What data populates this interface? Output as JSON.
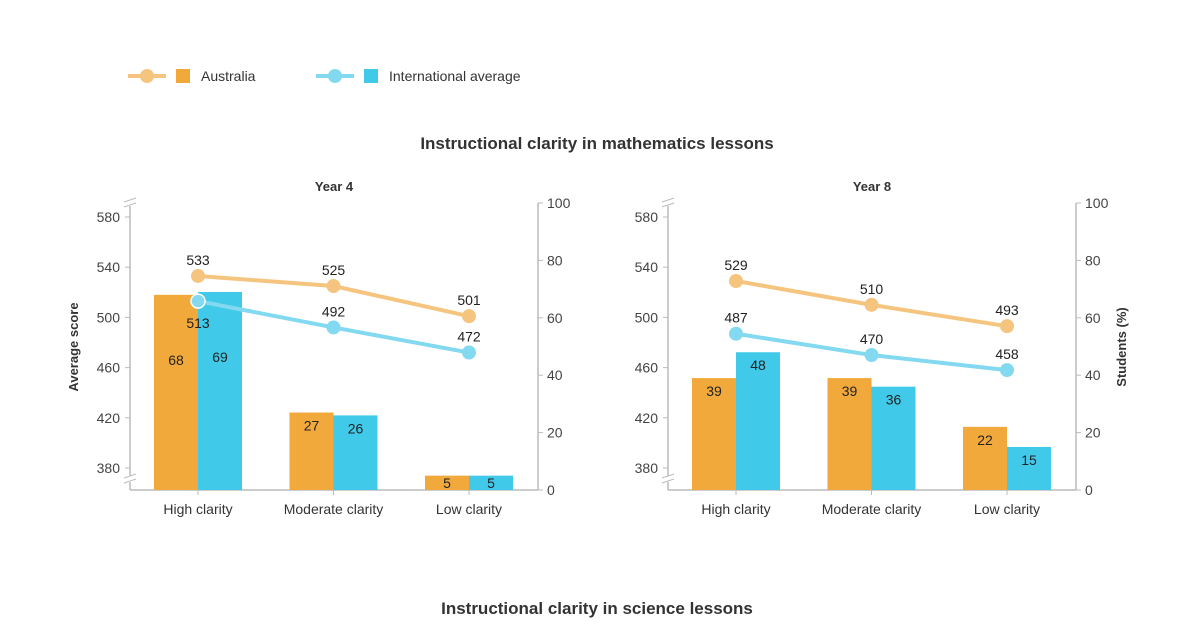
{
  "legend": [
    {
      "name": "Australia",
      "bar_color": "#f2a93b",
      "line_color": "#f5c57f"
    },
    {
      "name": "International average",
      "bar_color": "#41c9e9",
      "line_color": "#82d9f0"
    }
  ],
  "section_titles": [
    "Instructional clarity in mathematics lessons",
    "Instructional clarity in science lessons"
  ],
  "chart_data": [
    {
      "type": "bar+line",
      "title": "Year 4",
      "categories": [
        "High clarity",
        "Moderate clarity",
        "Low clarity"
      ],
      "ylabel_left": "Average score",
      "ylabel_right": "",
      "left_ticks": [
        380,
        420,
        460,
        500,
        540,
        580
      ],
      "right_ticks": [
        0,
        20,
        40,
        60,
        80,
        100
      ],
      "left_axis_broken": true,
      "bars": [
        {
          "name": "Australia",
          "values": [
            68,
            27,
            5
          ]
        },
        {
          "name": "International average",
          "values": [
            69,
            26,
            5
          ]
        }
      ],
      "lines": [
        {
          "name": "Australia",
          "values": [
            533,
            525,
            501
          ]
        },
        {
          "name": "International average",
          "values": [
            513,
            492,
            472
          ]
        }
      ]
    },
    {
      "type": "bar+line",
      "title": "Year 8",
      "categories": [
        "High clarity",
        "Moderate clarity",
        "Low clarity"
      ],
      "ylabel_left": "",
      "ylabel_right": "Students (%)",
      "left_ticks": [
        380,
        420,
        460,
        500,
        540,
        580
      ],
      "right_ticks": [
        0,
        20,
        40,
        60,
        80,
        100
      ],
      "left_axis_broken": true,
      "bars": [
        {
          "name": "Australia",
          "values": [
            39,
            39,
            22
          ]
        },
        {
          "name": "International average",
          "values": [
            48,
            36,
            15
          ]
        }
      ],
      "lines": [
        {
          "name": "Australia",
          "values": [
            529,
            510,
            493
          ]
        },
        {
          "name": "International average",
          "values": [
            487,
            470,
            458
          ]
        }
      ]
    }
  ]
}
